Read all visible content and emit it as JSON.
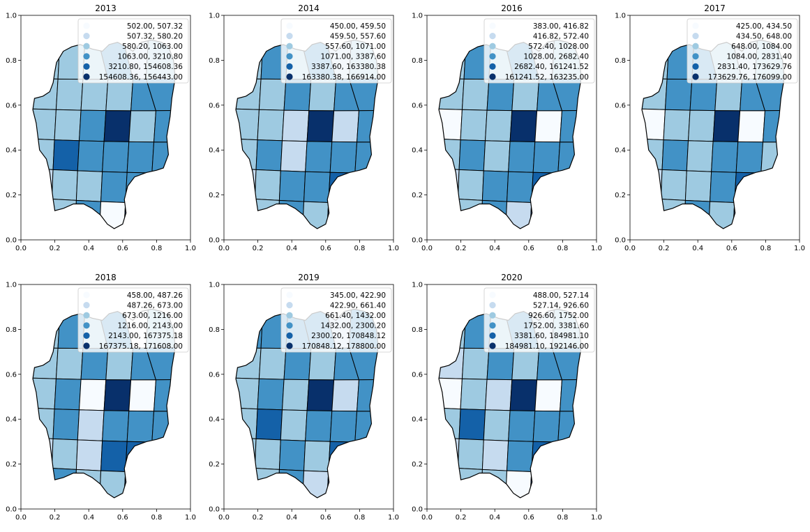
{
  "colors": [
    "#f7fbff",
    "#c6dbef",
    "#9ecae1",
    "#4292c6",
    "#1461a8",
    "#08306b"
  ],
  "axis": {
    "xticks": [
      "0.0",
      "0.2",
      "0.4",
      "0.6",
      "0.8",
      "1.0"
    ],
    "yticks": [
      "0.0",
      "0.2",
      "0.4",
      "0.6",
      "0.8",
      "1.0"
    ]
  },
  "panels": [
    {
      "title": "2013",
      "legend": [
        "502.00,    507.32",
        "507.32,    580.20",
        "580.20,   1063.00",
        "1063.00,   3210.80",
        "3210.80, 154608.36",
        "154608.36, 156443.00"
      ],
      "classes": [
        2,
        2,
        2,
        3,
        1,
        2,
        2,
        2,
        2,
        2,
        3,
        3,
        2,
        2,
        3,
        5,
        2,
        3,
        2,
        4,
        3,
        3,
        3,
        3,
        1,
        2,
        2,
        3,
        3,
        3,
        1,
        2,
        3,
        0,
        4,
        2
      ]
    },
    {
      "title": "2014",
      "legend": [
        "450.00,    459.50",
        "459.50,    557.60",
        "557.60,   1071.00",
        "1071.00,   3387.60",
        "3387.60, 163380.38",
        "163380.38, 166914.00"
      ],
      "classes": [
        2,
        3,
        2,
        3,
        1,
        2,
        2,
        2,
        3,
        2,
        3,
        3,
        2,
        2,
        1,
        5,
        1,
        3,
        2,
        3,
        1,
        3,
        3,
        3,
        1,
        2,
        3,
        3,
        4,
        2,
        0,
        2,
        3,
        2,
        4,
        3
      ]
    },
    {
      "title": "2016",
      "legend": [
        "383.00,    416.82",
        "416.82,    572.40",
        "572.40,   1028.00",
        "1028.00,   2682.40",
        "2682.40, 161241.52",
        "161241.52, 163235.00"
      ],
      "classes": [
        2,
        3,
        2,
        3,
        1,
        2,
        2,
        2,
        3,
        2,
        3,
        3,
        0,
        2,
        2,
        5,
        0,
        3,
        2,
        3,
        2,
        3,
        3,
        3,
        1,
        2,
        3,
        3,
        4,
        3,
        1,
        2,
        3,
        1,
        4,
        3
      ]
    },
    {
      "title": "2017",
      "legend": [
        "425.00,    434.50",
        "434.50,    648.00",
        "648.00,   1084.00",
        "1084.00,   2831.40",
        "2831.40, 173629.76",
        "173629.76, 176099.00"
      ],
      "classes": [
        2,
        3,
        3,
        2,
        1,
        2,
        2,
        3,
        3,
        2,
        3,
        3,
        0,
        2,
        2,
        5,
        0,
        3,
        2,
        3,
        2,
        3,
        3,
        2,
        1,
        2,
        2,
        3,
        4,
        2,
        2,
        2,
        3,
        2,
        4,
        3
      ]
    },
    {
      "title": "2018",
      "legend": [
        "458.00,    487.26",
        "487.26,    673.00",
        "673.00,   1216.00",
        "1216.00,   2143.00",
        "2143.00, 167375.18",
        "167375.18, 171608.00"
      ],
      "classes": [
        2,
        3,
        2,
        3,
        0,
        2,
        2,
        2,
        3,
        2,
        3,
        3,
        2,
        3,
        0,
        5,
        0,
        3,
        2,
        3,
        1,
        3,
        3,
        3,
        1,
        2,
        1,
        4,
        4,
        3,
        2,
        3,
        2,
        2,
        4,
        3
      ]
    },
    {
      "title": "2019",
      "legend": [
        "345.00,    422.90",
        "422.90,    661.40",
        "661.40,   1432.00",
        "1432.00,   2300.20",
        "2300.20, 170848.12",
        "170848.12, 178800.00"
      ],
      "classes": [
        3,
        3,
        3,
        3,
        1,
        3,
        2,
        2,
        3,
        2,
        3,
        3,
        2,
        3,
        2,
        5,
        1,
        3,
        2,
        4,
        2,
        3,
        3,
        3,
        2,
        2,
        3,
        2,
        4,
        3,
        2,
        2,
        3,
        1,
        4,
        3
      ]
    },
    {
      "title": "2020",
      "legend": [
        "488.00,    527.14",
        "527.14,    926.60",
        "926.60,   1752.00",
        "1752.00,   3381.60",
        "3381.60, 184981.10",
        "184981.10, 192146.00"
      ],
      "classes": [
        2,
        3,
        2,
        3,
        1,
        2,
        1,
        2,
        3,
        2,
        3,
        3,
        0,
        2,
        1,
        5,
        0,
        3,
        2,
        4,
        2,
        3,
        3,
        3,
        1,
        2,
        1,
        3,
        4,
        3,
        1,
        2,
        2,
        0,
        4,
        2
      ]
    }
  ]
}
